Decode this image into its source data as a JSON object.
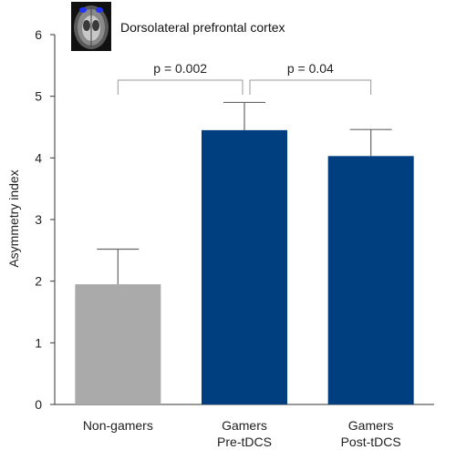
{
  "chart_data": {
    "type": "bar",
    "title": "Dorsolateral prefrontal cortex",
    "ylabel": "Asymmetry index",
    "xlabel": "",
    "ylim": [
      0,
      6
    ],
    "yticks": [
      "0",
      "1",
      "2",
      "3",
      "4",
      "5",
      "6"
    ],
    "categories": [
      [
        "Non-gamers"
      ],
      [
        "Gamers",
        "Pre-tDCS"
      ],
      [
        "Gamers",
        "Post-tDCS"
      ]
    ],
    "values": [
      1.95,
      4.45,
      4.03
    ],
    "errors": [
      0.57,
      0.45,
      0.43
    ],
    "colors": [
      "#aaaaaa",
      "#003f7f",
      "#003f7f"
    ],
    "grid": false,
    "annotations": [
      {
        "text": "p = 0.002",
        "from": 0,
        "to": 1
      },
      {
        "text": "p = 0.04",
        "from": 1,
        "to": 2
      }
    ],
    "inset_icon": "brain-scan-icon"
  }
}
